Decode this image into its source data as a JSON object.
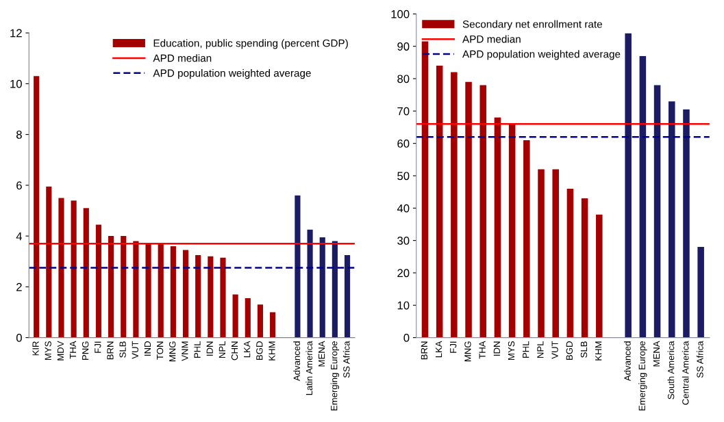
{
  "chart_data": [
    {
      "type": "bar",
      "categories": [
        "KIR",
        "MYS",
        "MDV",
        "THA",
        "PNG",
        "FJI",
        "BRN",
        "SLB",
        "VUT",
        "IND",
        "TON",
        "MNG",
        "VNM",
        "PHL",
        "IDN",
        "NPL",
        "CHN",
        "LKA",
        "BGD",
        "KHM",
        null,
        "Advanced",
        "Latin America",
        "MENA",
        "Emerging Europe",
        "SS Africa"
      ],
      "series": [
        {
          "name": "Education, public spending (percent GDP)",
          "color": "#a50000",
          "colors": [
            "#a50000",
            "#a50000",
            "#a50000",
            "#a50000",
            "#a50000",
            "#a50000",
            "#a50000",
            "#a50000",
            "#a50000",
            "#a50000",
            "#a50000",
            "#a50000",
            "#a50000",
            "#a50000",
            "#a50000",
            "#a50000",
            "#a50000",
            "#a50000",
            "#a50000",
            "#a50000",
            "#a50000",
            "#1c1c64",
            "#1c1c64",
            "#1c1c64",
            "#1c1c64",
            "#1c1c64"
          ],
          "values": [
            10.3,
            5.95,
            5.5,
            5.4,
            5.1,
            4.45,
            4.0,
            4.0,
            3.8,
            3.7,
            3.7,
            3.6,
            3.45,
            3.25,
            3.2,
            3.15,
            1.7,
            1.55,
            1.3,
            1.0,
            null,
            5.6,
            4.25,
            3.95,
            3.8,
            3.25
          ]
        }
      ],
      "ylim": [
        0,
        12
      ],
      "yticks": [
        0,
        2,
        4,
        6,
        8,
        10,
        12
      ],
      "ref_lines": [
        {
          "axis": "y",
          "value": 3.7,
          "label": "APD median",
          "color": "#ff0000",
          "line_style": "solid"
        },
        {
          "axis": "y",
          "value": 2.75,
          "label": "APD population weighted average",
          "color": "#00008b",
          "line_style": "dashed"
        }
      ],
      "legend": "top right",
      "grid": false
    },
    {
      "type": "bar",
      "categories": [
        "BRN",
        "LKA",
        "FJI",
        "MNG",
        "THA",
        "IDN",
        "MYS",
        "PHL",
        "NPL",
        "VUT",
        "BGD",
        "SLB",
        "KHM",
        null,
        "Advanced",
        "Emerging Europe",
        "MENA",
        "South America",
        "Central America",
        "SS Africa"
      ],
      "series": [
        {
          "name": "Secondary net enrollment rate",
          "color": "#a50000",
          "colors": [
            "#a50000",
            "#a50000",
            "#a50000",
            "#a50000",
            "#a50000",
            "#a50000",
            "#a50000",
            "#a50000",
            "#a50000",
            "#a50000",
            "#a50000",
            "#a50000",
            "#a50000",
            "#a50000",
            "#1c1c64",
            "#1c1c64",
            "#1c1c64",
            "#1c1c64",
            "#1c1c64",
            "#1c1c64"
          ],
          "values": [
            91.5,
            84,
            82,
            79,
            78,
            68,
            66,
            61,
            52,
            52,
            46,
            43,
            38,
            null,
            94,
            87,
            78,
            73,
            70.5,
            28
          ]
        }
      ],
      "ylim": [
        0,
        100
      ],
      "yticks": [
        0,
        10,
        20,
        30,
        40,
        50,
        60,
        70,
        80,
        90,
        100
      ],
      "ref_lines": [
        {
          "axis": "y",
          "value": 66,
          "label": "APD median",
          "color": "#ff0000",
          "line_style": "solid"
        },
        {
          "axis": "y",
          "value": 62,
          "label": "APD population weighted average",
          "color": "#00008b",
          "line_style": "dashed"
        }
      ],
      "legend": "top left",
      "grid": false
    }
  ]
}
